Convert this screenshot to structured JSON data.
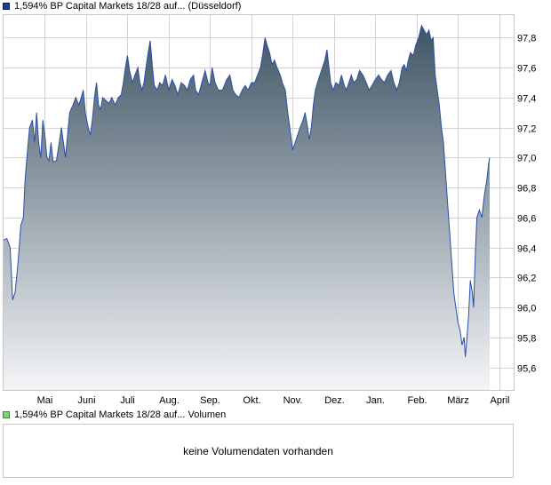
{
  "legend": {
    "price_label": "1,594% BP Capital Markets 18/28 auf... (Düsseldorf)",
    "volume_label": "1,594% BP Capital Markets 18/28 auf... Volumen"
  },
  "volume_panel": {
    "message": "keine Volumendaten vorhanden"
  },
  "colors": {
    "line": "#2a4fa8",
    "fill_top": "#3f5565",
    "fill_bottom": "#f4f5f7",
    "grid": "#d4d4d4"
  },
  "chart_data": {
    "type": "area",
    "title": "",
    "xlabel": "",
    "ylabel": "",
    "ylim": [
      95.45,
      97.95
    ],
    "y_ticks": [
      "97,8",
      "97,6",
      "97,4",
      "97,2",
      "97,0",
      "96,8",
      "96,6",
      "96,4",
      "96,2",
      "96,0",
      "95,8",
      "95,6"
    ],
    "y_tick_values": [
      97.8,
      97.6,
      97.4,
      97.2,
      97.0,
      96.8,
      96.6,
      96.4,
      96.2,
      96.0,
      95.8,
      95.6
    ],
    "x_range": [
      0,
      12.35
    ],
    "x_ticks": [
      "Mai",
      "Juni",
      "Juli",
      "Aug.",
      "Sep.",
      "Okt.",
      "Nov.",
      "Dez.",
      "Jan.",
      "Feb.",
      "März",
      "April"
    ],
    "x_tick_positions": [
      1,
      2,
      3,
      4,
      5,
      6,
      7,
      8,
      9,
      10,
      11,
      12
    ],
    "grid": true,
    "legend": "top-left",
    "series": [
      {
        "name": "1,594% BP Capital Markets 18/28 auf... (Düsseldorf)",
        "points": [
          [
            0.0,
            96.45
          ],
          [
            0.08,
            96.46
          ],
          [
            0.16,
            96.4
          ],
          [
            0.22,
            96.05
          ],
          [
            0.28,
            96.1
          ],
          [
            0.35,
            96.3
          ],
          [
            0.42,
            96.55
          ],
          [
            0.48,
            96.6
          ],
          [
            0.52,
            96.85
          ],
          [
            0.58,
            97.05
          ],
          [
            0.63,
            97.2
          ],
          [
            0.7,
            97.25
          ],
          [
            0.75,
            97.1
          ],
          [
            0.8,
            97.3
          ],
          [
            0.85,
            97.1
          ],
          [
            0.9,
            97.0
          ],
          [
            0.95,
            97.25
          ],
          [
            1.0,
            97.15
          ],
          [
            1.05,
            97.0
          ],
          [
            1.1,
            96.98
          ],
          [
            1.15,
            97.1
          ],
          [
            1.2,
            96.97
          ],
          [
            1.28,
            96.98
          ],
          [
            1.35,
            97.1
          ],
          [
            1.4,
            97.2
          ],
          [
            1.45,
            97.1
          ],
          [
            1.5,
            97.0
          ],
          [
            1.55,
            97.15
          ],
          [
            1.6,
            97.3
          ],
          [
            1.68,
            97.35
          ],
          [
            1.75,
            97.4
          ],
          [
            1.82,
            97.35
          ],
          [
            1.88,
            97.4
          ],
          [
            1.93,
            97.45
          ],
          [
            1.98,
            97.3
          ],
          [
            2.05,
            97.2
          ],
          [
            2.1,
            97.15
          ],
          [
            2.15,
            97.25
          ],
          [
            2.2,
            97.4
          ],
          [
            2.25,
            97.5
          ],
          [
            2.3,
            97.35
          ],
          [
            2.35,
            97.32
          ],
          [
            2.4,
            97.4
          ],
          [
            2.48,
            97.38
          ],
          [
            2.55,
            97.36
          ],
          [
            2.62,
            97.4
          ],
          [
            2.7,
            97.35
          ],
          [
            2.78,
            97.4
          ],
          [
            2.85,
            97.42
          ],
          [
            2.9,
            97.5
          ],
          [
            2.95,
            97.6
          ],
          [
            3.0,
            97.68
          ],
          [
            3.05,
            97.58
          ],
          [
            3.12,
            97.5
          ],
          [
            3.18,
            97.55
          ],
          [
            3.25,
            97.6
          ],
          [
            3.3,
            97.5
          ],
          [
            3.35,
            97.45
          ],
          [
            3.4,
            97.5
          ],
          [
            3.45,
            97.6
          ],
          [
            3.5,
            97.7
          ],
          [
            3.55,
            97.78
          ],
          [
            3.6,
            97.62
          ],
          [
            3.65,
            97.48
          ],
          [
            3.72,
            97.45
          ],
          [
            3.78,
            97.5
          ],
          [
            3.85,
            97.48
          ],
          [
            3.92,
            97.55
          ],
          [
            4.0,
            97.45
          ],
          [
            4.08,
            97.52
          ],
          [
            4.15,
            97.48
          ],
          [
            4.22,
            97.42
          ],
          [
            4.3,
            97.5
          ],
          [
            4.38,
            97.48
          ],
          [
            4.45,
            97.45
          ],
          [
            4.52,
            97.52
          ],
          [
            4.6,
            97.55
          ],
          [
            4.65,
            97.45
          ],
          [
            4.72,
            97.42
          ],
          [
            4.8,
            97.5
          ],
          [
            4.88,
            97.58
          ],
          [
            4.95,
            97.5
          ],
          [
            5.0,
            97.48
          ],
          [
            5.05,
            97.6
          ],
          [
            5.12,
            97.5
          ],
          [
            5.2,
            97.45
          ],
          [
            5.3,
            97.45
          ],
          [
            5.4,
            97.52
          ],
          [
            5.48,
            97.55
          ],
          [
            5.55,
            97.45
          ],
          [
            5.62,
            97.42
          ],
          [
            5.7,
            97.4
          ],
          [
            5.78,
            97.45
          ],
          [
            5.85,
            97.48
          ],
          [
            5.92,
            97.45
          ],
          [
            6.0,
            97.5
          ],
          [
            6.08,
            97.5
          ],
          [
            6.15,
            97.55
          ],
          [
            6.22,
            97.6
          ],
          [
            6.28,
            97.7
          ],
          [
            6.33,
            97.8
          ],
          [
            6.38,
            97.75
          ],
          [
            6.44,
            97.7
          ],
          [
            6.5,
            97.62
          ],
          [
            6.56,
            97.65
          ],
          [
            6.62,
            97.6
          ],
          [
            6.7,
            97.55
          ],
          [
            6.75,
            97.5
          ],
          [
            6.82,
            97.45
          ],
          [
            6.88,
            97.3
          ],
          [
            6.93,
            97.2
          ],
          [
            7.0,
            97.05
          ],
          [
            7.06,
            97.1
          ],
          [
            7.12,
            97.15
          ],
          [
            7.18,
            97.2
          ],
          [
            7.25,
            97.25
          ],
          [
            7.3,
            97.3
          ],
          [
            7.35,
            97.22
          ],
          [
            7.4,
            97.12
          ],
          [
            7.45,
            97.2
          ],
          [
            7.5,
            97.35
          ],
          [
            7.55,
            97.45
          ],
          [
            7.6,
            97.5
          ],
          [
            7.66,
            97.55
          ],
          [
            7.72,
            97.6
          ],
          [
            7.78,
            97.65
          ],
          [
            7.83,
            97.72
          ],
          [
            7.88,
            97.6
          ],
          [
            7.92,
            97.5
          ],
          [
            7.98,
            97.45
          ],
          [
            8.05,
            97.5
          ],
          [
            8.12,
            97.48
          ],
          [
            8.18,
            97.55
          ],
          [
            8.25,
            97.48
          ],
          [
            8.3,
            97.45
          ],
          [
            8.36,
            97.5
          ],
          [
            8.42,
            97.55
          ],
          [
            8.48,
            97.5
          ],
          [
            8.55,
            97.52
          ],
          [
            8.62,
            97.58
          ],
          [
            8.7,
            97.55
          ],
          [
            8.78,
            97.5
          ],
          [
            8.85,
            97.45
          ],
          [
            8.92,
            97.48
          ],
          [
            9.0,
            97.52
          ],
          [
            9.08,
            97.55
          ],
          [
            9.15,
            97.52
          ],
          [
            9.22,
            97.5
          ],
          [
            9.3,
            97.55
          ],
          [
            9.38,
            97.58
          ],
          [
            9.45,
            97.5
          ],
          [
            9.52,
            97.45
          ],
          [
            9.58,
            97.5
          ],
          [
            9.65,
            97.6
          ],
          [
            9.7,
            97.62
          ],
          [
            9.75,
            97.58
          ],
          [
            9.8,
            97.65
          ],
          [
            9.85,
            97.7
          ],
          [
            9.92,
            97.68
          ],
          [
            9.98,
            97.75
          ],
          [
            10.05,
            97.8
          ],
          [
            10.12,
            97.88
          ],
          [
            10.18,
            97.85
          ],
          [
            10.24,
            97.82
          ],
          [
            10.3,
            97.85
          ],
          [
            10.35,
            97.78
          ],
          [
            10.4,
            97.8
          ],
          [
            10.45,
            97.55
          ],
          [
            10.5,
            97.45
          ],
          [
            10.55,
            97.35
          ],
          [
            10.6,
            97.2
          ],
          [
            10.65,
            97.1
          ],
          [
            10.7,
            96.9
          ],
          [
            10.75,
            96.7
          ],
          [
            10.8,
            96.5
          ],
          [
            10.85,
            96.3
          ],
          [
            10.9,
            96.1
          ],
          [
            10.95,
            96.0
          ],
          [
            11.0,
            95.9
          ],
          [
            11.05,
            95.85
          ],
          [
            11.1,
            95.75
          ],
          [
            11.15,
            95.8
          ],
          [
            11.18,
            95.67
          ],
          [
            11.22,
            95.8
          ],
          [
            11.26,
            95.95
          ],
          [
            11.3,
            96.18
          ],
          [
            11.35,
            96.1
          ],
          [
            11.38,
            96.0
          ],
          [
            11.42,
            96.35
          ],
          [
            11.46,
            96.6
          ],
          [
            11.52,
            96.65
          ],
          [
            11.58,
            96.6
          ],
          [
            11.64,
            96.75
          ],
          [
            11.7,
            96.85
          ],
          [
            11.74,
            96.95
          ],
          [
            11.77,
            97.0
          ]
        ]
      }
    ]
  }
}
